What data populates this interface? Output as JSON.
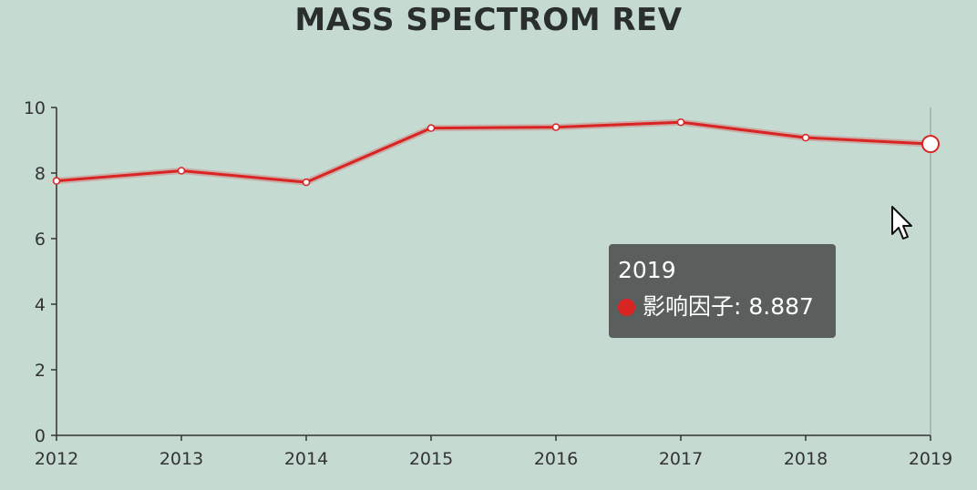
{
  "chart_data": {
    "type": "line",
    "title": "MASS SPECTROM REV",
    "x": [
      "2012",
      "2013",
      "2014",
      "2015",
      "2016",
      "2017",
      "2018",
      "2019"
    ],
    "series": [
      {
        "name": "影响因子",
        "values": [
          7.76,
          8.07,
          7.72,
          9.37,
          9.4,
          9.55,
          9.08,
          8.887
        ]
      }
    ],
    "ylim": [
      0,
      10
    ],
    "yticks": [
      "0",
      "2",
      "4",
      "6",
      "8",
      "10"
    ],
    "grid": false,
    "xlabel": "",
    "ylabel": ""
  },
  "colors": {
    "background": "#c5dbd2",
    "line": "#d92424",
    "axis": "#333333",
    "tooltip_bg": "#505554"
  },
  "tooltip": {
    "title": "2019",
    "series_name": "影响因子",
    "value": "8.887",
    "separator": ": "
  },
  "cursor": {
    "icon": "arrow-cursor-icon"
  }
}
